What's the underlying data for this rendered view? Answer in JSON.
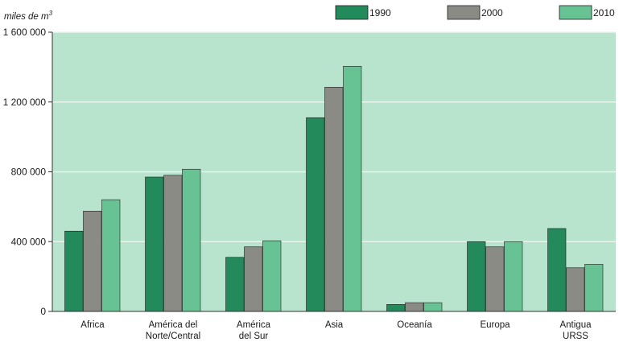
{
  "chart_data": {
    "type": "bar",
    "ylabel": "miles de m",
    "ylabel_superscript": "3",
    "ylim": [
      0,
      1600000
    ],
    "yticks": [
      0,
      400000,
      800000,
      1200000,
      1600000
    ],
    "ytick_labels": [
      "0",
      "400 000",
      "800 000",
      "1 200 000",
      "1 600 000"
    ],
    "grid": true,
    "legend_position": "top-right",
    "categories": [
      [
        "Africa"
      ],
      [
        "América del",
        "Norte/Central"
      ],
      [
        "América",
        "del Sur"
      ],
      [
        "Asia"
      ],
      [
        "Oceanía"
      ],
      [
        "Europa"
      ],
      [
        "Antigua",
        "URSS"
      ]
    ],
    "series": [
      {
        "name": "1990",
        "color": "#238a5c",
        "values": [
          460000,
          770000,
          310000,
          1110000,
          40000,
          400000,
          475000
        ]
      },
      {
        "name": "2000",
        "color": "#8a8b84",
        "values": [
          575000,
          780000,
          370000,
          1285000,
          50000,
          370000,
          250000
        ]
      },
      {
        "name": "2010",
        "color": "#67c394",
        "values": [
          640000,
          815000,
          405000,
          1405000,
          50000,
          400000,
          270000
        ]
      }
    ],
    "colors": {
      "plot_background": "#b8e3cd",
      "gridline": "#e7f5ed",
      "axis": "#333333"
    }
  }
}
